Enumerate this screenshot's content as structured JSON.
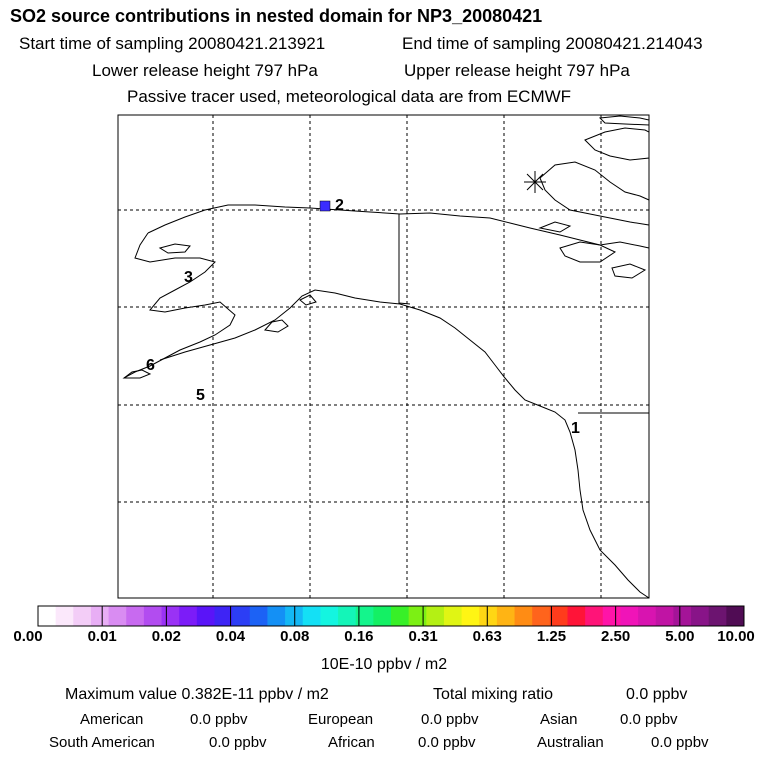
{
  "title": "SO2 source contributions in nested domain for NP3_20080421",
  "start_label": "Start time of sampling 20080421.213921",
  "end_label": "End time of sampling 20080421.214043",
  "lower_label": "Lower release height  797 hPa",
  "upper_label": "Upper release height  797 hPa",
  "tracer_label": "Passive tracer used, meteorological data are from ECMWF",
  "map": {
    "markers": [
      {
        "name": "source-marker-1",
        "label": "1"
      },
      {
        "name": "source-marker-2",
        "label": "2"
      },
      {
        "name": "source-marker-3",
        "label": "3"
      },
      {
        "name": "source-marker-5",
        "label": "5"
      },
      {
        "name": "source-marker-6",
        "label": "6"
      }
    ],
    "max_cell_color": "#3a2cff"
  },
  "colorbar": {
    "colors": [
      "#ffffff",
      "#fbe8fb",
      "#f3cdf7",
      "#e8aef5",
      "#d98cf2",
      "#c86af0",
      "#b24cf0",
      "#9a32f5",
      "#7c1cf8",
      "#5a14f8",
      "#3e24f5",
      "#2c3ef5",
      "#1c62f5",
      "#1490f5",
      "#14b8f5",
      "#14e0f5",
      "#14f5e0",
      "#14f5b8",
      "#14f58c",
      "#14f064",
      "#38f028",
      "#7cf014",
      "#b4f014",
      "#e0f514",
      "#fff514",
      "#ffd614",
      "#ffb414",
      "#ff8c14",
      "#ff641c",
      "#ff3c1c",
      "#ff1438",
      "#ff1478",
      "#ff14a8",
      "#f014b8",
      "#d814b0",
      "#c014a4",
      "#a41498",
      "#881488",
      "#6c1470",
      "#500c54"
    ],
    "ticks": [
      "0.00",
      "0.01",
      "0.02",
      "0.04",
      "0.08",
      "0.16",
      "0.31",
      "0.63",
      "1.25",
      "2.50",
      "5.00",
      "10.00"
    ],
    "unit": "10E-10 ppbv / m2"
  },
  "stats": {
    "max_label": "Maximum value  0.382E-11 ppbv / m2",
    "total_label": "Total mixing ratio",
    "total_value": "0.0 ppbv",
    "regions": [
      {
        "name": "American",
        "value": "0.0 ppbv"
      },
      {
        "name": "European",
        "value": "0.0 ppbv"
      },
      {
        "name": "Asian",
        "value": "0.0 ppbv"
      },
      {
        "name": "South American",
        "value": "0.0 ppbv"
      },
      {
        "name": "African",
        "value": "0.0 ppbv"
      },
      {
        "name": "Australian",
        "value": "0.0 ppbv"
      }
    ]
  }
}
